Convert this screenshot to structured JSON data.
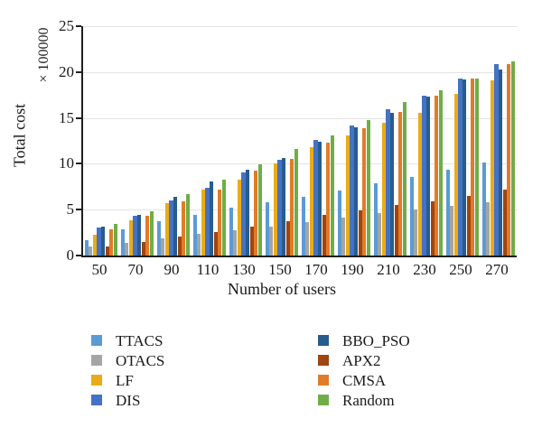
{
  "figure": {
    "background": "#FFFFFF",
    "text_color": "#1A1A1A",
    "axis_color": "#1F1F1F",
    "grid_color": "#E3E3E3"
  },
  "chart_data": {
    "type": "bar",
    "title": "",
    "xlabel": "Number of users",
    "ylabel": "Total cost",
    "y_multiplier_label": "× 100000",
    "categories": [
      "50",
      "70",
      "90",
      "110",
      "130",
      "150",
      "170",
      "190",
      "210",
      "230",
      "250",
      "270"
    ],
    "ylim": [
      0,
      25
    ],
    "yticks": [
      0,
      5,
      10,
      15,
      20,
      25
    ],
    "grid": true,
    "legend_position": "bottom",
    "series": [
      {
        "name": "TTACS",
        "color": "#5B9BD5",
        "values": [
          1.7,
          2.9,
          3.7,
          4.4,
          5.2,
          5.8,
          6.4,
          7.1,
          7.9,
          8.6,
          9.4,
          10.1
        ]
      },
      {
        "name": "OTACS",
        "color": "#A5A5A5",
        "values": [
          1.0,
          1.4,
          1.9,
          2.4,
          2.8,
          3.2,
          3.6,
          4.1,
          4.6,
          5.0,
          5.4,
          5.8
        ]
      },
      {
        "name": "LF",
        "color": "#E9AC18",
        "values": [
          2.3,
          3.8,
          5.7,
          7.2,
          8.3,
          10.0,
          11.8,
          13.1,
          14.5,
          15.6,
          17.6,
          19.1
        ]
      },
      {
        "name": "DIS",
        "color": "#4472C4",
        "values": [
          3.1,
          4.3,
          6.0,
          7.4,
          9.1,
          10.4,
          12.6,
          14.2,
          15.9,
          17.4,
          19.3,
          20.9
        ]
      },
      {
        "name": "BBO_PSO",
        "color": "#275C8E",
        "values": [
          3.2,
          4.4,
          6.4,
          8.1,
          9.4,
          10.6,
          12.4,
          14.0,
          15.6,
          17.3,
          19.2,
          20.3
        ]
      },
      {
        "name": "APX2",
        "color": "#A04410",
        "values": [
          1.0,
          1.5,
          2.1,
          2.6,
          3.2,
          3.7,
          4.4,
          4.9,
          5.5,
          5.9,
          6.5,
          7.2
        ]
      },
      {
        "name": "CMSA",
        "color": "#E07C28",
        "values": [
          2.9,
          4.3,
          5.9,
          7.2,
          9.3,
          10.5,
          12.3,
          13.9,
          15.7,
          17.4,
          19.3,
          20.9
        ]
      },
      {
        "name": "Random",
        "color": "#70AD47",
        "values": [
          3.4,
          4.8,
          6.7,
          8.3,
          9.9,
          11.6,
          13.1,
          14.8,
          16.7,
          18.0,
          19.3,
          21.2
        ]
      }
    ],
    "legend_columns": [
      [
        "TTACS",
        "OTACS",
        "LF",
        "DIS"
      ],
      [
        "BBO_PSO",
        "APX2",
        "CMSA",
        "Random"
      ]
    ]
  }
}
